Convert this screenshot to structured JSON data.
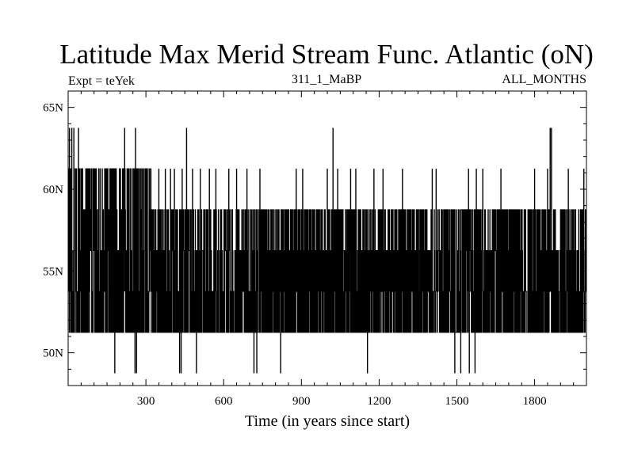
{
  "chart_data": {
    "type": "line",
    "title": "Latitude Max Merid Stream Func. Atlantic (oN)",
    "subtitle_left": "Expt = teYek",
    "subtitle_center": "311_1_MaBP",
    "subtitle_right": "ALL_MONTHS",
    "xlabel": "Time (in years since start)",
    "ylabel": "",
    "xlim": [
      0,
      2000
    ],
    "ylim": [
      48,
      66
    ],
    "x_ticks": [
      300,
      600,
      900,
      1200,
      1500,
      1800
    ],
    "x_tick_labels": [
      "300",
      "600",
      "900",
      "1200",
      "1500",
      "1800"
    ],
    "y_ticks": [
      50,
      55,
      60,
      65
    ],
    "y_tick_labels": [
      "50N",
      "55N",
      "60N",
      "65N"
    ],
    "grid": false,
    "levels": [
      48.75,
      51.25,
      53.75,
      56.25,
      58.75,
      61.25,
      63.75
    ],
    "series": [
      {
        "values_description_free": true,
        "segments": [
          {
            "x": [
              0,
              320
            ],
            "band": [
              51.25,
              61.25
            ]
          },
          {
            "x": [
              320,
              2000
            ],
            "band": [
              51.25,
              58.75
            ]
          },
          {
            "x": [
              760,
              1400
            ],
            "band": [
              53.75,
              56.25
            ]
          }
        ],
        "spikes_high": [
          {
            "x": 5,
            "y": 63.75
          },
          {
            "x": 14,
            "y": 63.75
          },
          {
            "x": 22,
            "y": 63.75
          },
          {
            "x": 40,
            "y": 63.75
          },
          {
            "x": 218,
            "y": 63.75
          },
          {
            "x": 260,
            "y": 63.75
          },
          {
            "x": 457,
            "y": 63.75
          },
          {
            "x": 1022,
            "y": 63.75
          },
          {
            "x": 1860,
            "y": 63.75
          },
          {
            "x": 1865,
            "y": 63.75
          },
          {
            "x": 350,
            "y": 61.25
          },
          {
            "x": 375,
            "y": 61.25
          },
          {
            "x": 395,
            "y": 61.25
          },
          {
            "x": 410,
            "y": 61.25
          },
          {
            "x": 440,
            "y": 61.25
          },
          {
            "x": 480,
            "y": 61.25
          },
          {
            "x": 510,
            "y": 61.25
          },
          {
            "x": 545,
            "y": 61.25
          },
          {
            "x": 570,
            "y": 61.25
          },
          {
            "x": 620,
            "y": 61.25
          },
          {
            "x": 650,
            "y": 61.25
          },
          {
            "x": 690,
            "y": 61.25
          },
          {
            "x": 740,
            "y": 61.25
          },
          {
            "x": 880,
            "y": 61.25
          },
          {
            "x": 905,
            "y": 61.25
          },
          {
            "x": 1000,
            "y": 61.25
          },
          {
            "x": 1040,
            "y": 61.25
          },
          {
            "x": 1090,
            "y": 61.25
          },
          {
            "x": 1110,
            "y": 61.25
          },
          {
            "x": 1180,
            "y": 61.25
          },
          {
            "x": 1215,
            "y": 61.25
          },
          {
            "x": 1290,
            "y": 61.25
          },
          {
            "x": 1405,
            "y": 61.25
          },
          {
            "x": 1420,
            "y": 61.25
          },
          {
            "x": 1545,
            "y": 61.25
          },
          {
            "x": 1575,
            "y": 61.25
          },
          {
            "x": 1600,
            "y": 61.25
          },
          {
            "x": 1670,
            "y": 61.25
          },
          {
            "x": 1800,
            "y": 61.25
          },
          {
            "x": 1850,
            "y": 61.25
          },
          {
            "x": 1930,
            "y": 61.25
          },
          {
            "x": 1990,
            "y": 61.25
          }
        ],
        "spikes_low": [
          {
            "x": 180,
            "y": 48.75
          },
          {
            "x": 258,
            "y": 48.75
          },
          {
            "x": 264,
            "y": 48.75
          },
          {
            "x": 430,
            "y": 48.75
          },
          {
            "x": 436,
            "y": 48.75
          },
          {
            "x": 495,
            "y": 48.75
          },
          {
            "x": 717,
            "y": 48.75
          },
          {
            "x": 728,
            "y": 48.75
          },
          {
            "x": 820,
            "y": 48.75
          },
          {
            "x": 1155,
            "y": 48.75
          },
          {
            "x": 1492,
            "y": 48.75
          },
          {
            "x": 1515,
            "y": 48.75
          },
          {
            "x": 1548,
            "y": 48.75
          },
          {
            "x": 1570,
            "y": 48.75
          }
        ]
      }
    ]
  }
}
